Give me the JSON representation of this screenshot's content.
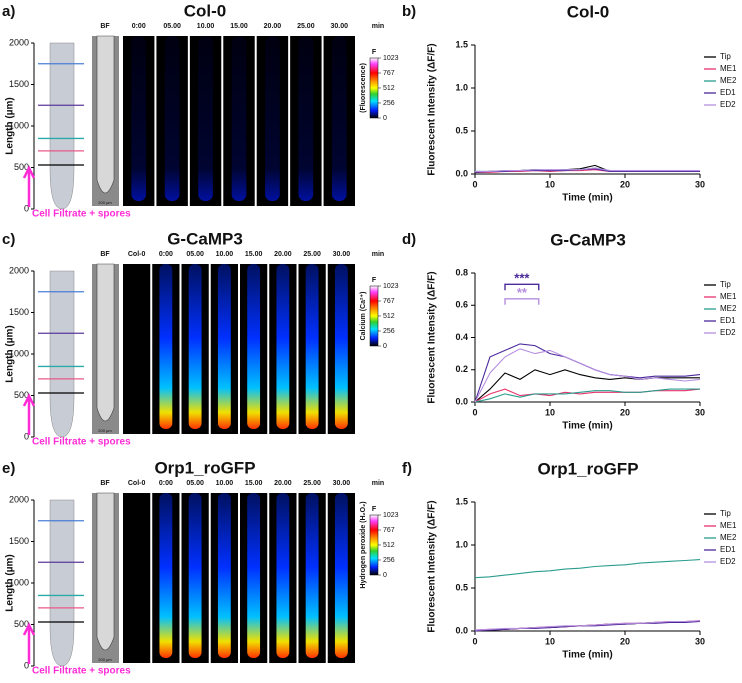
{
  "panels": [
    {
      "letter": "a)",
      "title": "Col-0",
      "bf": "BF",
      "times": [
        "0:00",
        "05.00",
        "10.00",
        "15.00",
        "20.00",
        "25.00",
        "30.00"
      ],
      "unit": "min",
      "ylabel": "Length (µm)",
      "yticks": [
        0,
        500,
        1000,
        1500,
        2000
      ],
      "treatment": "Cell Filtrate + spores",
      "colorbar": {
        "title": "F",
        "label": "(Fluorescence)",
        "ticks": [
          0,
          256,
          512,
          767,
          1023
        ]
      },
      "scale": "200 µm"
    },
    {
      "letter": "c)",
      "title": "G-CaMP3",
      "bf": "BF",
      "control": "Col-0",
      "times": [
        "0:00",
        "05.00",
        "10.00",
        "15.00",
        "20.00",
        "25.00",
        "30.00"
      ],
      "unit": "min",
      "ylabel": "Length (µm)",
      "yticks": [
        0,
        500,
        1000,
        1500,
        2000
      ],
      "treatment": "Cell Filtrate + spores",
      "colorbar": {
        "title": "F",
        "label": "Calcium (Ca²⁺)",
        "ticks": [
          0,
          256,
          512,
          767,
          1023
        ]
      },
      "scale": "200 µm"
    },
    {
      "letter": "e)",
      "title": "Orp1_roGFP",
      "bf": "BF",
      "control": "Col-0",
      "times": [
        "0:00",
        "05.00",
        "10.00",
        "15.00",
        "20.00",
        "25.00",
        "30.00"
      ],
      "unit": "min",
      "ylabel": "Length (µm)",
      "yticks": [
        0,
        500,
        1000,
        1500,
        2000
      ],
      "treatment": "Cell Filtrate + spores",
      "colorbar": {
        "title": "F",
        "label": "Hydrogen peroxide (H₂O₂)",
        "ticks": [
          0,
          256,
          512,
          767,
          1023
        ]
      },
      "scale": "200 µm"
    }
  ],
  "chart_data": [
    {
      "type": "line",
      "label": "b)",
      "title": "Col-0",
      "x_label": "Time (min)",
      "y_label": "Fluorescent Intensity (ΔF/F)",
      "x": [
        0,
        2,
        4,
        6,
        8,
        10,
        12,
        14,
        16,
        18,
        20,
        22,
        24,
        26,
        28,
        30
      ],
      "xlim": [
        0,
        30
      ],
      "xticks": [
        0,
        10,
        20,
        30
      ],
      "ylim": [
        0,
        1.5
      ],
      "yticks": [
        {
          "value": 0,
          "label": "0.0"
        },
        0.5,
        {
          "value": 1,
          "label": "1.0"
        },
        1.5
      ],
      "series": [
        {
          "name": "Tip",
          "color": "#000000",
          "values": [
            0.02,
            0.03,
            0.03,
            0.04,
            0.05,
            0.04,
            0.05,
            0.06,
            0.1,
            0.03,
            0.03,
            0.03,
            0.03,
            0.03,
            0.03,
            0.03
          ]
        },
        {
          "name": "ME1",
          "color": "#e8336b",
          "values": [
            0.02,
            0.02,
            0.03,
            0.03,
            0.04,
            0.03,
            0.04,
            0.04,
            0.05,
            0.03,
            0.03,
            0.03,
            0.03,
            0.03,
            0.03,
            0.03
          ]
        },
        {
          "name": "ME2",
          "color": "#2a9d8f",
          "values": [
            0.03,
            0.03,
            0.04,
            0.04,
            0.05,
            0.04,
            0.05,
            0.05,
            0.07,
            0.04,
            0.04,
            0.04,
            0.04,
            0.04,
            0.04,
            0.04
          ]
        },
        {
          "name": "ED1",
          "color": "#4b2a9b",
          "values": [
            0.02,
            0.03,
            0.03,
            0.04,
            0.04,
            0.04,
            0.04,
            0.05,
            0.06,
            0.03,
            0.03,
            0.03,
            0.03,
            0.03,
            0.03,
            0.03
          ]
        },
        {
          "name": "ED2",
          "color": "#b58ee0",
          "values": [
            0.03,
            0.03,
            0.04,
            0.04,
            0.05,
            0.05,
            0.05,
            0.05,
            0.07,
            0.04,
            0.04,
            0.04,
            0.04,
            0.04,
            0.04,
            0.04
          ]
        }
      ]
    },
    {
      "type": "line",
      "label": "d)",
      "title": "G-CaMP3",
      "x_label": "Time (min)",
      "y_label": "Fluorescent Intensity (ΔF/F)",
      "x": [
        0,
        2,
        4,
        6,
        8,
        10,
        12,
        14,
        16,
        18,
        20,
        22,
        24,
        26,
        28,
        30
      ],
      "xlim": [
        0,
        30
      ],
      "xticks": [
        0,
        10,
        20,
        30
      ],
      "ylim": [
        0,
        0.8
      ],
      "yticks": [
        {
          "value": 0,
          "label": "0.0"
        },
        0.2,
        0.4,
        0.6,
        0.8
      ],
      "annotations": [
        {
          "text": "***",
          "color": "#4b2a9b",
          "x": [
            4,
            8.5
          ],
          "y": 0.73
        },
        {
          "text": "**",
          "color": "#b58ee0",
          "x": [
            4,
            8.5
          ],
          "y": 0.64
        }
      ],
      "series": [
        {
          "name": "Tip",
          "color": "#000000",
          "values": [
            0,
            0.08,
            0.18,
            0.14,
            0.2,
            0.17,
            0.2,
            0.17,
            0.15,
            0.14,
            0.15,
            0.14,
            0.15,
            0.15,
            0.15,
            0.15
          ]
        },
        {
          "name": "ME1",
          "color": "#e8336b",
          "values": [
            0,
            0.05,
            0.08,
            0.04,
            0.05,
            0.04,
            0.06,
            0.05,
            0.06,
            0.06,
            0.06,
            0.06,
            0.07,
            0.07,
            0.07,
            0.08
          ]
        },
        {
          "name": "ME2",
          "color": "#2a9d8f",
          "values": [
            0,
            0.02,
            0.05,
            0.03,
            0.05,
            0.05,
            0.05,
            0.06,
            0.07,
            0.07,
            0.06,
            0.06,
            0.07,
            0.08,
            0.08,
            0.08
          ]
        },
        {
          "name": "ED1",
          "color": "#4b2a9b",
          "values": [
            0,
            0.28,
            0.32,
            0.36,
            0.35,
            0.3,
            0.28,
            0.24,
            0.2,
            0.17,
            0.16,
            0.15,
            0.16,
            0.16,
            0.16,
            0.17
          ]
        },
        {
          "name": "ED2",
          "color": "#b58ee0",
          "values": [
            0,
            0.18,
            0.28,
            0.33,
            0.3,
            0.32,
            0.28,
            0.24,
            0.2,
            0.17,
            0.16,
            0.14,
            0.15,
            0.14,
            0.13,
            0.14
          ]
        }
      ]
    },
    {
      "type": "line",
      "label": "f)",
      "title": "Orp1_roGFP",
      "x_label": "Time (min)",
      "y_label": "Fluorescent Intensity (ΔF/F)",
      "x": [
        0,
        2,
        4,
        6,
        8,
        10,
        12,
        14,
        16,
        18,
        20,
        22,
        24,
        26,
        28,
        30
      ],
      "xlim": [
        0,
        30
      ],
      "xticks": [
        0,
        10,
        20,
        30
      ],
      "ylim": [
        0,
        1.5
      ],
      "yticks": [
        {
          "value": 0,
          "label": "0.0"
        },
        0.5,
        {
          "value": 1,
          "label": "1.0"
        },
        1.5
      ],
      "series": [
        {
          "name": "Tip",
          "color": "#000000",
          "values": [
            0,
            0.01,
            0.02,
            0.03,
            0.04,
            0.04,
            0.05,
            0.06,
            0.07,
            0.08,
            0.08,
            0.09,
            0.1,
            0.1,
            0.11,
            0.11
          ]
        },
        {
          "name": "ME1",
          "color": "#e8336b",
          "values": [
            0.01,
            0.02,
            0.02,
            0.03,
            0.04,
            0.05,
            0.05,
            0.06,
            0.07,
            0.08,
            0.09,
            0.09,
            0.1,
            0.11,
            0.11,
            0.12
          ]
        },
        {
          "name": "ME2",
          "color": "#2a9d8f",
          "values": [
            0.62,
            0.63,
            0.65,
            0.67,
            0.69,
            0.7,
            0.72,
            0.73,
            0.75,
            0.76,
            0.77,
            0.79,
            0.8,
            0.81,
            0.82,
            0.83
          ]
        },
        {
          "name": "ED1",
          "color": "#4b2a9b",
          "values": [
            0,
            0.01,
            0.02,
            0.03,
            0.03,
            0.04,
            0.05,
            0.06,
            0.06,
            0.07,
            0.08,
            0.09,
            0.09,
            0.1,
            0.1,
            0.11
          ]
        },
        {
          "name": "ED2",
          "color": "#b58ee0",
          "values": [
            0.01,
            0.02,
            0.03,
            0.03,
            0.04,
            0.05,
            0.06,
            0.06,
            0.07,
            0.08,
            0.09,
            0.09,
            0.1,
            0.11,
            0.11,
            0.12
          ]
        }
      ]
    }
  ]
}
